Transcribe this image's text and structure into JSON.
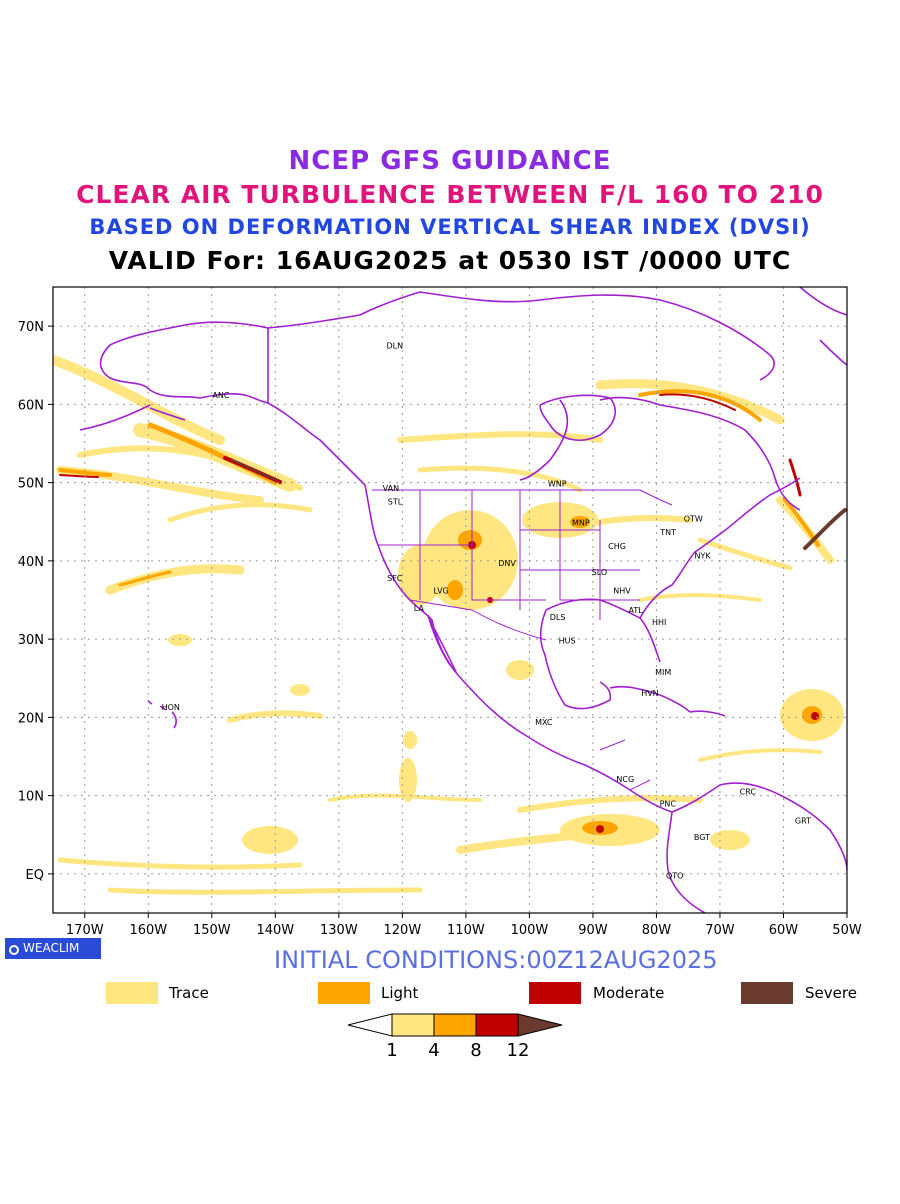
{
  "titles": {
    "line1": "NCEP GFS GUIDANCE",
    "line2": "CLEAR AIR TURBULENCE BETWEEN F/L 160 TO 210",
    "line3": "BASED ON DEFORMATION VERTICAL SHEAR INDEX (DVSI)",
    "line4": "VALID For: 16AUG2025 at 0530 IST /0000 UTC"
  },
  "map": {
    "lon_range": [
      -175,
      -50
    ],
    "lat_range": [
      -5,
      75
    ],
    "lat_ticks": [
      {
        "value": 70,
        "label": "70N"
      },
      {
        "value": 60,
        "label": "60N"
      },
      {
        "value": 50,
        "label": "50N"
      },
      {
        "value": 40,
        "label": "40N"
      },
      {
        "value": 30,
        "label": "30N"
      },
      {
        "value": 20,
        "label": "20N"
      },
      {
        "value": 10,
        "label": "10N"
      },
      {
        "value": 0,
        "label": "EQ"
      }
    ],
    "lon_ticks": [
      {
        "value": -170,
        "label": "170W"
      },
      {
        "value": -160,
        "label": "160W"
      },
      {
        "value": -150,
        "label": "150W"
      },
      {
        "value": -140,
        "label": "140W"
      },
      {
        "value": -130,
        "label": "130W"
      },
      {
        "value": -120,
        "label": "120W"
      },
      {
        "value": -110,
        "label": "110W"
      },
      {
        "value": -100,
        "label": "100W"
      },
      {
        "value": -90,
        "label": "90W"
      },
      {
        "value": -80,
        "label": "80W"
      },
      {
        "value": -70,
        "label": "70W"
      },
      {
        "value": -60,
        "label": "60W"
      },
      {
        "value": -50,
        "label": "50W"
      }
    ],
    "stations": [
      {
        "name": "DLN",
        "lon": -122.5,
        "lat": 67.5
      },
      {
        "name": "ANC",
        "lon": -149.9,
        "lat": 61.2
      },
      {
        "name": "VAN",
        "lon": -123.1,
        "lat": 49.3
      },
      {
        "name": "STL",
        "lon": -122.3,
        "lat": 47.6
      },
      {
        "name": "WNP",
        "lon": -97.1,
        "lat": 49.9
      },
      {
        "name": "OTW",
        "lon": -75.7,
        "lat": 45.4
      },
      {
        "name": "MNP",
        "lon": -93.3,
        "lat": 44.9
      },
      {
        "name": "TNT",
        "lon": -79.4,
        "lat": 43.7
      },
      {
        "name": "CHG",
        "lon": -87.6,
        "lat": 41.9
      },
      {
        "name": "NYK",
        "lon": -74.0,
        "lat": 40.7
      },
      {
        "name": "DNV",
        "lon": -104.9,
        "lat": 39.7
      },
      {
        "name": "SFC",
        "lon": -122.4,
        "lat": 37.8
      },
      {
        "name": "SLO",
        "lon": -90.2,
        "lat": 38.6
      },
      {
        "name": "LVG",
        "lon": -115.1,
        "lat": 36.2
      },
      {
        "name": "NHV",
        "lon": -86.8,
        "lat": 36.2
      },
      {
        "name": "LA",
        "lon": -118.2,
        "lat": 34.0
      },
      {
        "name": "ATL",
        "lon": -84.4,
        "lat": 33.7
      },
      {
        "name": "DLS",
        "lon": -96.8,
        "lat": 32.8
      },
      {
        "name": "HHI",
        "lon": -80.7,
        "lat": 32.2
      },
      {
        "name": "HUS",
        "lon": -95.4,
        "lat": 29.8
      },
      {
        "name": "MIM",
        "lon": -80.2,
        "lat": 25.8
      },
      {
        "name": "HON",
        "lon": -157.9,
        "lat": 21.3
      },
      {
        "name": "HVN",
        "lon": -82.4,
        "lat": 23.1
      },
      {
        "name": "MXC",
        "lon": -99.1,
        "lat": 19.4
      },
      {
        "name": "NCG",
        "lon": -86.3,
        "lat": 12.1
      },
      {
        "name": "CRC",
        "lon": -66.9,
        "lat": 10.5
      },
      {
        "name": "PNC",
        "lon": -79.5,
        "lat": 9.0
      },
      {
        "name": "GRT",
        "lon": -58.2,
        "lat": 6.8
      },
      {
        "name": "BGT",
        "lon": -74.1,
        "lat": 4.7
      },
      {
        "name": "QTO",
        "lon": -78.5,
        "lat": -0.2
      }
    ],
    "colors": {
      "trace": "#ffe680",
      "light": "#ffa500",
      "moderate": "#c00000",
      "severe": "#6b3a2e",
      "coast": "#a020d0",
      "grid": "#9a9a9a"
    }
  },
  "branding": {
    "label": "WEACLIM"
  },
  "initial_conditions": "INITIAL CONDITIONS:00Z12AUG2025",
  "legend": [
    {
      "label": "Trace",
      "color": "#ffe680"
    },
    {
      "label": "Light",
      "color": "#ffa500"
    },
    {
      "label": "Moderate",
      "color": "#c00000"
    },
    {
      "label": "Severe",
      "color": "#6b3a2e"
    }
  ],
  "colorbar": {
    "ticks": [
      "1",
      "4",
      "8",
      "12"
    ],
    "colors": [
      "#ffffff",
      "#ffe680",
      "#ffa500",
      "#c00000",
      "#6b3a2e"
    ]
  }
}
